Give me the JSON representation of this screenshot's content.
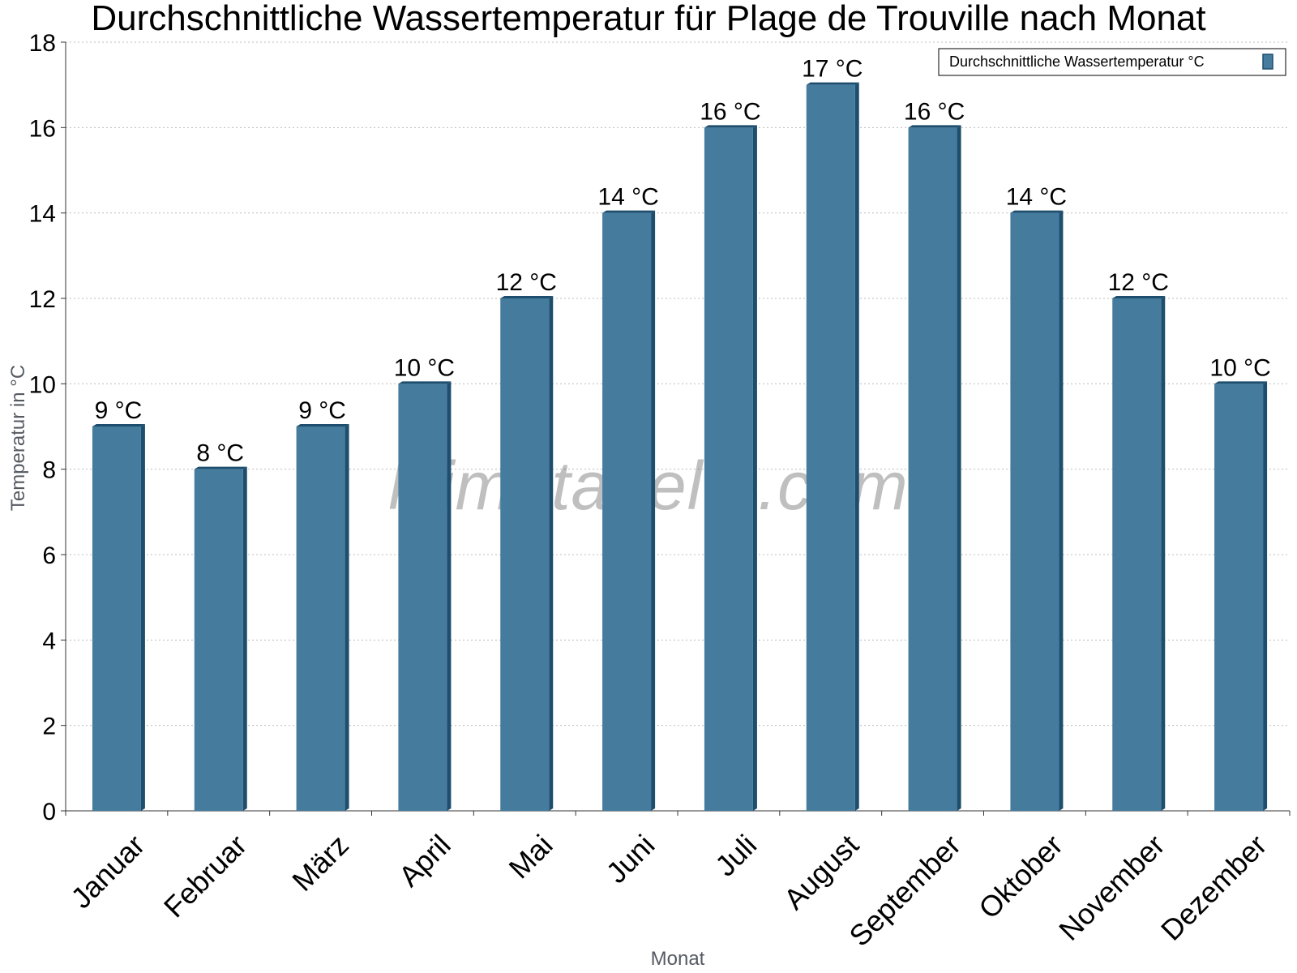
{
  "chart_data": {
    "type": "bar",
    "title": "Durchschnittliche Wassertemperatur für Plage de Trouville nach Monat",
    "xlabel": "Monat",
    "ylabel": "Temperatur in °C",
    "categories": [
      "Januar",
      "Februar",
      "März",
      "April",
      "Mai",
      "Juni",
      "Juli",
      "August",
      "September",
      "Oktober",
      "November",
      "Dezember"
    ],
    "series": [
      {
        "name": "Durchschnittliche Wassertemperatur °C",
        "values": [
          9,
          8,
          9,
          10,
          12,
          14,
          16,
          17,
          16,
          14,
          12,
          10
        ],
        "data_labels": [
          "9 °C",
          "8 °C",
          "9 °C",
          "10 °C",
          "12 °C",
          "14 °C",
          "16 °C",
          "17 °C",
          "16 °C",
          "14 °C",
          "12 °C",
          "10 °C"
        ],
        "color": "#457b9d",
        "edge_color": "#1d4e6e"
      }
    ],
    "ylim": [
      0,
      18
    ],
    "yticks": [
      0,
      2,
      4,
      6,
      8,
      10,
      12,
      14,
      16,
      18
    ],
    "grid": true,
    "legend_position": "top-right",
    "watermark": "klimatabelle.com"
  }
}
